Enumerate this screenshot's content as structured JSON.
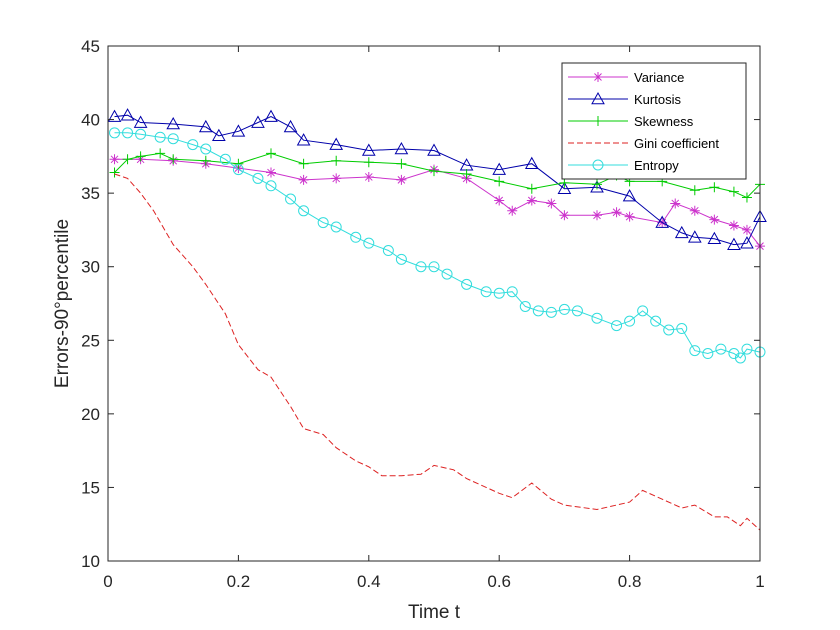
{
  "chart_data": {
    "type": "line",
    "title": "",
    "xlabel": "Time t",
    "ylabel": "Errors-90°percentile",
    "xlim": [
      0,
      1
    ],
    "ylim": [
      10,
      45
    ],
    "xticks": [
      0,
      0.2,
      0.4,
      0.6,
      0.8,
      1
    ],
    "xtick_labels": [
      "0",
      "0.2",
      "0.4",
      "0.6",
      "0.8",
      "1"
    ],
    "yticks": [
      10,
      15,
      20,
      25,
      30,
      35,
      40,
      45
    ],
    "ytick_labels": [
      "10",
      "15",
      "20",
      "25",
      "30",
      "35",
      "40",
      "45"
    ],
    "grid": false,
    "legend_position": "top-right",
    "series": [
      {
        "name": "Variance",
        "color": "#cc33cc",
        "marker": "asterisk",
        "line": "solid",
        "points": [
          [
            0.01,
            37.3
          ],
          [
            0.05,
            37.3
          ],
          [
            0.1,
            37.2
          ],
          [
            0.15,
            37.0
          ],
          [
            0.2,
            36.7
          ],
          [
            0.25,
            36.4
          ],
          [
            0.3,
            35.9
          ],
          [
            0.35,
            36.0
          ],
          [
            0.4,
            36.1
          ],
          [
            0.45,
            35.9
          ],
          [
            0.5,
            36.6
          ],
          [
            0.55,
            36.0
          ],
          [
            0.6,
            34.5
          ],
          [
            0.62,
            33.8
          ],
          [
            0.65,
            34.5
          ],
          [
            0.68,
            34.3
          ],
          [
            0.7,
            33.5
          ],
          [
            0.75,
            33.5
          ],
          [
            0.78,
            33.7
          ],
          [
            0.8,
            33.4
          ],
          [
            0.85,
            33.0
          ],
          [
            0.87,
            34.3
          ],
          [
            0.9,
            33.8
          ],
          [
            0.93,
            33.2
          ],
          [
            0.96,
            32.8
          ],
          [
            0.98,
            32.5
          ],
          [
            1.0,
            31.4
          ]
        ]
      },
      {
        "name": "Kurtosis",
        "color": "#0000aa",
        "marker": "triangle",
        "line": "solid",
        "points": [
          [
            0.01,
            40.2
          ],
          [
            0.03,
            40.3
          ],
          [
            0.05,
            39.8
          ],
          [
            0.1,
            39.7
          ],
          [
            0.15,
            39.5
          ],
          [
            0.17,
            38.9
          ],
          [
            0.2,
            39.2
          ],
          [
            0.23,
            39.8
          ],
          [
            0.25,
            40.2
          ],
          [
            0.28,
            39.5
          ],
          [
            0.3,
            38.6
          ],
          [
            0.35,
            38.3
          ],
          [
            0.4,
            37.9
          ],
          [
            0.45,
            38.0
          ],
          [
            0.5,
            37.9
          ],
          [
            0.55,
            36.9
          ],
          [
            0.6,
            36.6
          ],
          [
            0.65,
            37.0
          ],
          [
            0.7,
            35.3
          ],
          [
            0.75,
            35.4
          ],
          [
            0.8,
            34.8
          ],
          [
            0.85,
            33.0
          ],
          [
            0.88,
            32.3
          ],
          [
            0.9,
            32.0
          ],
          [
            0.93,
            31.9
          ],
          [
            0.96,
            31.5
          ],
          [
            0.98,
            31.6
          ],
          [
            1.0,
            33.4
          ]
        ]
      },
      {
        "name": "Skewness",
        "color": "#00cc00",
        "marker": "plus",
        "line": "solid",
        "points": [
          [
            0.01,
            36.4
          ],
          [
            0.03,
            37.3
          ],
          [
            0.05,
            37.5
          ],
          [
            0.08,
            37.7
          ],
          [
            0.1,
            37.3
          ],
          [
            0.15,
            37.2
          ],
          [
            0.2,
            37.0
          ],
          [
            0.25,
            37.7
          ],
          [
            0.3,
            37.0
          ],
          [
            0.35,
            37.2
          ],
          [
            0.4,
            37.1
          ],
          [
            0.45,
            37.0
          ],
          [
            0.5,
            36.5
          ],
          [
            0.55,
            36.3
          ],
          [
            0.6,
            35.8
          ],
          [
            0.65,
            35.3
          ],
          [
            0.7,
            35.7
          ],
          [
            0.75,
            35.6
          ],
          [
            0.78,
            36.2
          ],
          [
            0.8,
            35.8
          ],
          [
            0.85,
            35.8
          ],
          [
            0.9,
            35.2
          ],
          [
            0.93,
            35.4
          ],
          [
            0.96,
            35.1
          ],
          [
            0.98,
            34.7
          ],
          [
            1.0,
            35.6
          ]
        ]
      },
      {
        "name": "Gini coefficient",
        "color": "#dd2222",
        "marker": "none",
        "line": "dashed",
        "points": [
          [
            0.01,
            36.3
          ],
          [
            0.03,
            36.0
          ],
          [
            0.05,
            35.0
          ],
          [
            0.07,
            33.8
          ],
          [
            0.1,
            31.5
          ],
          [
            0.13,
            30.0
          ],
          [
            0.15,
            28.8
          ],
          [
            0.18,
            26.8
          ],
          [
            0.2,
            24.7
          ],
          [
            0.23,
            23.0
          ],
          [
            0.25,
            22.5
          ],
          [
            0.28,
            20.5
          ],
          [
            0.3,
            19.0
          ],
          [
            0.33,
            18.6
          ],
          [
            0.35,
            17.7
          ],
          [
            0.38,
            16.8
          ],
          [
            0.4,
            16.4
          ],
          [
            0.42,
            15.8
          ],
          [
            0.45,
            15.8
          ],
          [
            0.48,
            15.9
          ],
          [
            0.5,
            16.5
          ],
          [
            0.53,
            16.2
          ],
          [
            0.55,
            15.6
          ],
          [
            0.58,
            15.0
          ],
          [
            0.6,
            14.6
          ],
          [
            0.62,
            14.3
          ],
          [
            0.65,
            15.3
          ],
          [
            0.68,
            14.2
          ],
          [
            0.7,
            13.8
          ],
          [
            0.75,
            13.5
          ],
          [
            0.8,
            14.0
          ],
          [
            0.82,
            14.8
          ],
          [
            0.85,
            14.2
          ],
          [
            0.88,
            13.6
          ],
          [
            0.9,
            13.8
          ],
          [
            0.93,
            13.0
          ],
          [
            0.95,
            13.0
          ],
          [
            0.97,
            12.4
          ],
          [
            0.98,
            12.9
          ],
          [
            1.0,
            12.1
          ]
        ]
      },
      {
        "name": "Entropy",
        "color": "#33dddd",
        "marker": "circle",
        "line": "solid",
        "points": [
          [
            0.01,
            39.1
          ],
          [
            0.03,
            39.1
          ],
          [
            0.05,
            39.0
          ],
          [
            0.08,
            38.8
          ],
          [
            0.1,
            38.7
          ],
          [
            0.13,
            38.3
          ],
          [
            0.15,
            38.0
          ],
          [
            0.18,
            37.3
          ],
          [
            0.2,
            36.6
          ],
          [
            0.23,
            36.0
          ],
          [
            0.25,
            35.5
          ],
          [
            0.28,
            34.6
          ],
          [
            0.3,
            33.8
          ],
          [
            0.33,
            33.0
          ],
          [
            0.35,
            32.7
          ],
          [
            0.38,
            32.0
          ],
          [
            0.4,
            31.6
          ],
          [
            0.43,
            31.1
          ],
          [
            0.45,
            30.5
          ],
          [
            0.48,
            30.0
          ],
          [
            0.5,
            30.0
          ],
          [
            0.52,
            29.5
          ],
          [
            0.55,
            28.8
          ],
          [
            0.58,
            28.3
          ],
          [
            0.6,
            28.2
          ],
          [
            0.62,
            28.3
          ],
          [
            0.64,
            27.3
          ],
          [
            0.66,
            27.0
          ],
          [
            0.68,
            26.9
          ],
          [
            0.7,
            27.1
          ],
          [
            0.72,
            27.0
          ],
          [
            0.75,
            26.5
          ],
          [
            0.78,
            26.0
          ],
          [
            0.8,
            26.3
          ],
          [
            0.82,
            27.0
          ],
          [
            0.84,
            26.3
          ],
          [
            0.86,
            25.7
          ],
          [
            0.88,
            25.8
          ],
          [
            0.9,
            24.3
          ],
          [
            0.92,
            24.1
          ],
          [
            0.94,
            24.4
          ],
          [
            0.96,
            24.1
          ],
          [
            0.97,
            23.8
          ],
          [
            0.98,
            24.4
          ],
          [
            1.0,
            24.2
          ]
        ]
      }
    ]
  }
}
